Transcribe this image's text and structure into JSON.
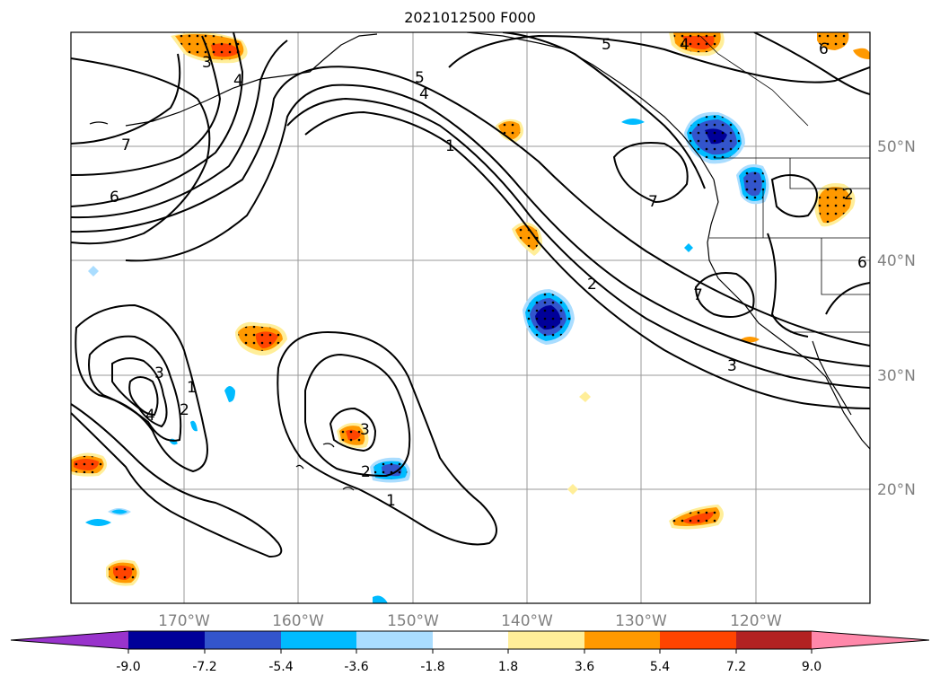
{
  "title": "2021012500 F000",
  "lon_labels": [
    "170°W",
    "160°W",
    "150°W",
    "140°W",
    "130°W",
    "120°W"
  ],
  "lat_labels": [
    "50°N",
    "40°N",
    "30°N",
    "20°N"
  ],
  "contour_labels": [
    "7",
    "6",
    "5",
    "4",
    "3",
    "2",
    "1",
    "4",
    "3",
    "2",
    "1",
    "3",
    "2",
    "1",
    "7",
    "7",
    "4",
    "6",
    "5",
    "4",
    "6",
    "2",
    "3"
  ],
  "colorbar": {
    "ticks": [
      "-9.0",
      "-7.2",
      "-5.4",
      "-3.6",
      "-1.8",
      "1.8",
      "3.6",
      "5.4",
      "7.2",
      "9.0"
    ],
    "colors": [
      "#9933cc",
      "#000099",
      "#3355cc",
      "#00bbff",
      "#aaddff",
      "#ffffff",
      "#ffee99",
      "#ff9900",
      "#ff4400",
      "#b22222",
      "#ff88aa"
    ]
  }
}
